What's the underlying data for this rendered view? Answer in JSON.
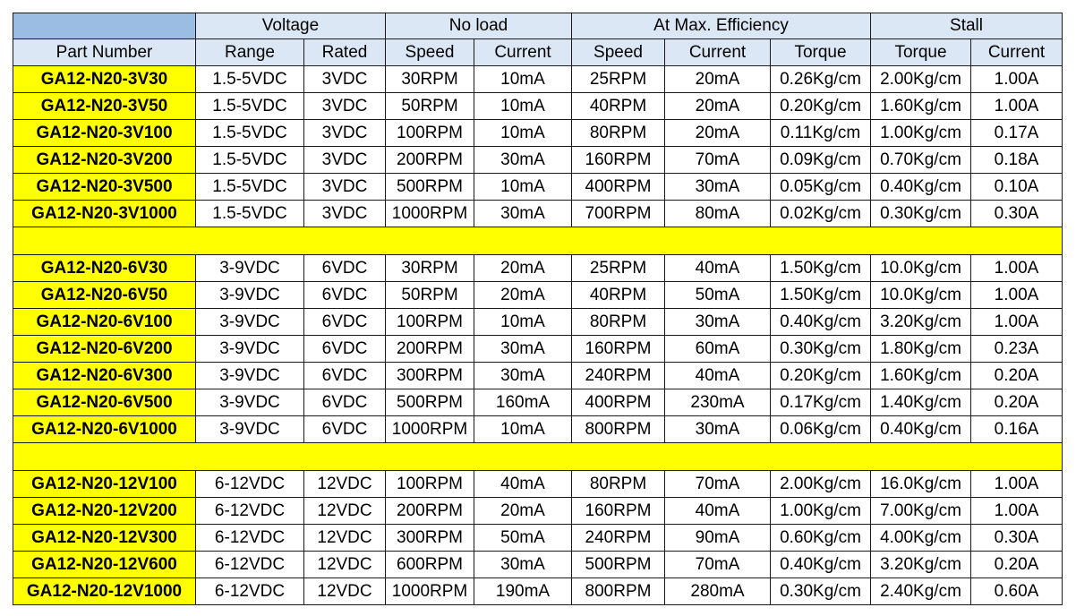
{
  "colors": {
    "header_bg": "#dbe7f5",
    "corner_bg": "#9cbde3",
    "highlight": "#ffff00",
    "border": "#1a1a1a"
  },
  "table": {
    "group_headers": [
      "Voltage",
      "No load",
      "At Max. Efficiency",
      "Stall"
    ],
    "sub_headers": [
      "Part Number",
      "Range",
      "Rated",
      "Speed",
      "Current",
      "Speed",
      "Current",
      "Torque",
      "Torque",
      "Current"
    ],
    "groups": [
      [
        [
          "GA12-N20-3V30",
          "1.5-5VDC",
          "3VDC",
          "30RPM",
          "10mA",
          "25RPM",
          "20mA",
          "0.26Kg/cm",
          "2.00Kg/cm",
          "1.00A"
        ],
        [
          "GA12-N20-3V50",
          "1.5-5VDC",
          "3VDC",
          "50RPM",
          "10mA",
          "40RPM",
          "20mA",
          "0.20Kg/cm",
          "1.60Kg/cm",
          "1.00A"
        ],
        [
          "GA12-N20-3V100",
          "1.5-5VDC",
          "3VDC",
          "100RPM",
          "10mA",
          "80RPM",
          "20mA",
          "0.11Kg/cm",
          "1.00Kg/cm",
          "0.17A"
        ],
        [
          "GA12-N20-3V200",
          "1.5-5VDC",
          "3VDC",
          "200RPM",
          "30mA",
          "160RPM",
          "70mA",
          "0.09Kg/cm",
          "0.70Kg/cm",
          "0.18A"
        ],
        [
          "GA12-N20-3V500",
          "1.5-5VDC",
          "3VDC",
          "500RPM",
          "10mA",
          "400RPM",
          "30mA",
          "0.05Kg/cm",
          "0.40Kg/cm",
          "0.10A"
        ],
        [
          "GA12-N20-3V1000",
          "1.5-5VDC",
          "3VDC",
          "1000RPM",
          "30mA",
          "700RPM",
          "80mA",
          "0.02Kg/cm",
          "0.30Kg/cm",
          "0.30A"
        ]
      ],
      [
        [
          "GA12-N20-6V30",
          "3-9VDC",
          "6VDC",
          "30RPM",
          "20mA",
          "25RPM",
          "40mA",
          "1.50Kg/cm",
          "10.0Kg/cm",
          "1.00A"
        ],
        [
          "GA12-N20-6V50",
          "3-9VDC",
          "6VDC",
          "50RPM",
          "20mA",
          "40RPM",
          "50mA",
          "1.50Kg/cm",
          "10.0Kg/cm",
          "1.00A"
        ],
        [
          "GA12-N20-6V100",
          "3-9VDC",
          "6VDC",
          "100RPM",
          "10mA",
          "80RPM",
          "30mA",
          "0.40Kg/cm",
          "3.20Kg/cm",
          "1.00A"
        ],
        [
          "GA12-N20-6V200",
          "3-9VDC",
          "6VDC",
          "200RPM",
          "30mA",
          "160RPM",
          "60mA",
          "0.30Kg/cm",
          "1.80Kg/cm",
          "0.23A"
        ],
        [
          "GA12-N20-6V300",
          "3-9VDC",
          "6VDC",
          "300RPM",
          "30mA",
          "240RPM",
          "40mA",
          "0.20Kg/cm",
          "1.60Kg/cm",
          "0.20A"
        ],
        [
          "GA12-N20-6V500",
          "3-9VDC",
          "6VDC",
          "500RPM",
          "160mA",
          "400RPM",
          "230mA",
          "0.17Kg/cm",
          "1.40Kg/cm",
          "0.20A"
        ],
        [
          "GA12-N20-6V1000",
          "3-9VDC",
          "6VDC",
          "1000RPM",
          "10mA",
          "800RPM",
          "30mA",
          "0.06Kg/cm",
          "0.40Kg/cm",
          "0.16A"
        ]
      ],
      [
        [
          "GA12-N20-12V100",
          "6-12VDC",
          "12VDC",
          "100RPM",
          "40mA",
          "80RPM",
          "70mA",
          "2.00Kg/cm",
          "16.0Kg/cm",
          "1.00A"
        ],
        [
          "GA12-N20-12V200",
          "6-12VDC",
          "12VDC",
          "200RPM",
          "20mA",
          "160RPM",
          "40mA",
          "1.00Kg/cm",
          "7.00Kg/cm",
          "1.00A"
        ],
        [
          "GA12-N20-12V300",
          "6-12VDC",
          "12VDC",
          "300RPM",
          "50mA",
          "240RPM",
          "90mA",
          "0.60Kg/cm",
          "4.00Kg/cm",
          "0.30A"
        ],
        [
          "GA12-N20-12V600",
          "6-12VDC",
          "12VDC",
          "600RPM",
          "30mA",
          "500RPM",
          "70mA",
          "0.40Kg/cm",
          "3.20Kg/cm",
          "0.20A"
        ],
        [
          "GA12-N20-12V1000",
          "6-12VDC",
          "12VDC",
          "1000RPM",
          "190mA",
          "800RPM",
          "280mA",
          "0.30Kg/cm",
          "2.40Kg/cm",
          "0.60A"
        ]
      ]
    ]
  }
}
